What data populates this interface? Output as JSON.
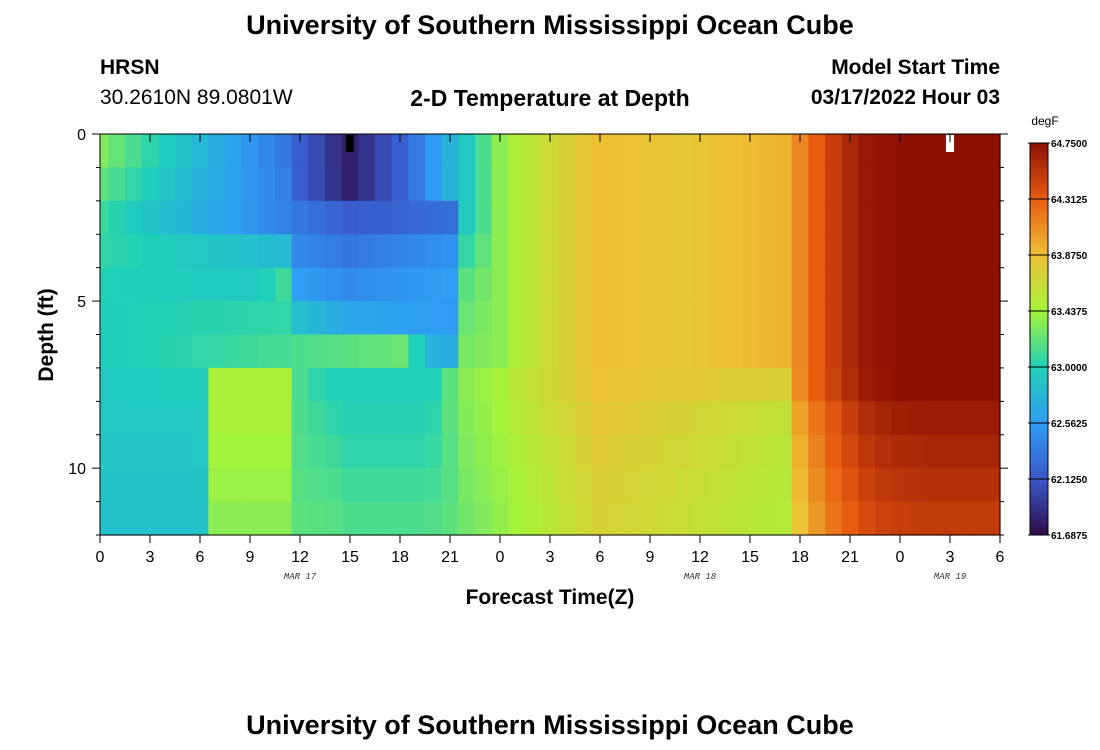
{
  "page": {
    "title_top": "University of Southern Mississippi Ocean Cube",
    "title_bottom": "University of Southern Mississippi Ocean Cube",
    "station": "HRSN",
    "coords": "30.2610N  89.0801W",
    "chart_title": "2-D Temperature at Depth",
    "model_label": "Model Start Time",
    "model_time": "03/17/2022 Hour 03"
  },
  "colors": {
    "background": "#ffffff",
    "axis": "#000000",
    "marker_black": "#000000",
    "marker_white": "#ffffff"
  },
  "chart_data": {
    "type": "heatmap",
    "title": "2-D Temperature at Depth",
    "xlabel": "Forecast Time(Z)",
    "ylabel": "Depth (ft)",
    "x_hours_since_start": [
      0,
      1,
      2,
      3,
      4,
      5,
      6,
      7,
      8,
      9,
      10,
      11,
      12,
      13,
      14,
      15,
      16,
      17,
      18,
      19,
      20,
      21,
      22,
      23,
      24,
      25,
      26,
      27,
      28,
      29,
      30,
      31,
      32,
      33,
      34,
      35,
      36,
      37,
      38,
      39,
      40,
      41,
      42,
      43,
      44,
      45,
      46,
      47,
      48,
      49,
      50,
      51,
      52,
      53,
      54
    ],
    "x_range_hours": [
      0,
      54
    ],
    "x_ticks": [
      {
        "hour": 0,
        "label": "0"
      },
      {
        "hour": 3,
        "label": "3"
      },
      {
        "hour": 6,
        "label": "6"
      },
      {
        "hour": 9,
        "label": "9"
      },
      {
        "hour": 12,
        "label": "12"
      },
      {
        "hour": 15,
        "label": "15"
      },
      {
        "hour": 18,
        "label": "18"
      },
      {
        "hour": 21,
        "label": "21"
      },
      {
        "hour": 24,
        "label": "0"
      },
      {
        "hour": 27,
        "label": "3"
      },
      {
        "hour": 30,
        "label": "6"
      },
      {
        "hour": 33,
        "label": "9"
      },
      {
        "hour": 36,
        "label": "12"
      },
      {
        "hour": 39,
        "label": "15"
      },
      {
        "hour": 42,
        "label": "18"
      },
      {
        "hour": 45,
        "label": "21"
      },
      {
        "hour": 48,
        "label": "0"
      },
      {
        "hour": 51,
        "label": "3"
      },
      {
        "hour": 54,
        "label": "6"
      }
    ],
    "date_labels": [
      {
        "hour": 12,
        "label": "MAR 17"
      },
      {
        "hour": 36,
        "label": "MAR 18"
      },
      {
        "hour": 51,
        "label": "MAR 19"
      }
    ],
    "y_depth_ft": [
      0,
      1,
      2,
      3,
      4,
      5,
      6,
      7,
      8,
      9,
      10,
      11
    ],
    "y_range_ft": [
      0,
      12
    ],
    "y_ticks": [
      {
        "value": 0,
        "label": "0"
      },
      {
        "value": 5,
        "label": "5"
      },
      {
        "value": 10,
        "label": "10"
      }
    ],
    "colorbar": {
      "unit": "degF",
      "min": 61.6875,
      "max": 64.75,
      "ticks": [
        "61.6875",
        "62.1250",
        "62.5625",
        "63.0000",
        "63.4375",
        "63.8750",
        "64.3125",
        "64.7500"
      ],
      "colors": [
        "#2e0d4a",
        "#3a57c8",
        "#2f9df4",
        "#20d0b8",
        "#a6f43a",
        "#efc035",
        "#e85b10",
        "#8c1004"
      ]
    },
    "markers": [
      {
        "hour": 15,
        "color": "black"
      },
      {
        "hour": 51,
        "color": "white"
      }
    ],
    "z_degF": [
      [
        63.32,
        63.23,
        63.14,
        63.05,
        62.96,
        62.88,
        62.79,
        62.7,
        62.61,
        62.52,
        62.43,
        62.34,
        62.17,
        62.04,
        61.9,
        61.8,
        61.92,
        62.05,
        62.18,
        62.35,
        62.55,
        62.75,
        62.95,
        63.15,
        63.35,
        63.5,
        63.58,
        63.66,
        63.74,
        63.82,
        63.87,
        63.86,
        63.85,
        63.84,
        63.83,
        63.82,
        63.84,
        63.86,
        63.87,
        63.89,
        63.91,
        63.93,
        64.12,
        64.31,
        64.48,
        64.61,
        64.7,
        64.73,
        64.74,
        64.74,
        64.74,
        64.74,
        64.74,
        64.74,
        64.74
      ],
      [
        63.21,
        63.13,
        63.06,
        62.98,
        62.91,
        62.83,
        62.76,
        62.68,
        62.61,
        62.53,
        62.46,
        62.38,
        62.17,
        62.05,
        61.92,
        61.8,
        61.92,
        62.05,
        62.18,
        62.35,
        62.55,
        62.75,
        62.95,
        63.15,
        63.35,
        63.5,
        63.58,
        63.66,
        63.74,
        63.82,
        63.87,
        63.86,
        63.85,
        63.84,
        63.83,
        63.82,
        63.84,
        63.86,
        63.87,
        63.89,
        63.91,
        63.93,
        64.12,
        64.31,
        64.48,
        64.61,
        64.7,
        64.73,
        64.74,
        64.74,
        64.74,
        64.74,
        64.74,
        64.74,
        64.74
      ],
      [
        63.09,
        63.03,
        62.96,
        62.9,
        62.84,
        62.78,
        62.71,
        62.65,
        62.59,
        62.52,
        62.46,
        62.4,
        62.33,
        62.27,
        62.21,
        62.15,
        62.17,
        62.19,
        62.21,
        62.23,
        62.25,
        62.27,
        62.95,
        63.15,
        63.35,
        63.5,
        63.58,
        63.66,
        63.74,
        63.82,
        63.87,
        63.86,
        63.85,
        63.84,
        63.83,
        63.82,
        63.84,
        63.86,
        63.87,
        63.89,
        63.91,
        63.93,
        64.12,
        64.31,
        64.48,
        64.61,
        64.7,
        64.73,
        64.74,
        64.74,
        64.74,
        64.74,
        64.74,
        64.74,
        64.74
      ],
      [
        63.06,
        63.04,
        63.02,
        62.99,
        62.97,
        62.95,
        62.92,
        62.9,
        62.88,
        62.85,
        62.83,
        62.81,
        62.44,
        62.4,
        62.36,
        62.32,
        62.35,
        62.38,
        62.41,
        62.44,
        62.47,
        62.5,
        63.07,
        63.21,
        63.35,
        63.5,
        63.58,
        63.66,
        63.74,
        63.82,
        63.87,
        63.86,
        63.85,
        63.84,
        63.83,
        63.82,
        63.84,
        63.86,
        63.87,
        63.89,
        63.91,
        63.93,
        64.12,
        64.31,
        64.48,
        64.61,
        64.7,
        64.73,
        64.74,
        64.74,
        64.74,
        64.74,
        64.74,
        64.74,
        64.74
      ],
      [
        63.01,
        63.0,
        62.99,
        62.99,
        62.98,
        62.97,
        62.96,
        62.96,
        62.95,
        62.94,
        63.0,
        63.1,
        62.57,
        62.53,
        62.49,
        62.45,
        62.47,
        62.49,
        62.51,
        62.53,
        62.55,
        62.57,
        63.19,
        63.27,
        63.35,
        63.5,
        63.58,
        63.66,
        63.74,
        63.82,
        63.87,
        63.86,
        63.85,
        63.84,
        63.83,
        63.82,
        63.84,
        63.86,
        63.87,
        63.89,
        63.91,
        63.93,
        64.12,
        64.31,
        64.48,
        64.61,
        64.7,
        64.73,
        64.74,
        64.74,
        64.74,
        64.74,
        64.74,
        64.74,
        64.74
      ],
      [
        62.99,
        62.99,
        63.0,
        63.01,
        63.01,
        63.02,
        63.03,
        63.03,
        63.04,
        63.05,
        63.05,
        63.06,
        62.85,
        62.78,
        62.71,
        62.64,
        62.62,
        62.61,
        62.59,
        62.58,
        62.56,
        62.55,
        63.24,
        63.3,
        63.35,
        63.5,
        63.58,
        63.66,
        63.74,
        63.82,
        63.87,
        63.86,
        63.85,
        63.84,
        63.83,
        63.82,
        63.84,
        63.86,
        63.87,
        63.89,
        63.91,
        63.93,
        64.12,
        64.31,
        64.48,
        64.61,
        64.7,
        64.73,
        64.74,
        64.74,
        64.74,
        64.74,
        64.74,
        64.74,
        64.74
      ],
      [
        62.97,
        62.98,
        63.0,
        63.01,
        63.03,
        63.04,
        63.06,
        63.07,
        63.09,
        63.1,
        63.12,
        63.13,
        63.15,
        63.16,
        63.18,
        63.19,
        63.21,
        63.22,
        63.24,
        63.0,
        62.75,
        62.7,
        63.29,
        63.32,
        63.35,
        63.5,
        63.58,
        63.66,
        63.74,
        63.82,
        63.87,
        63.86,
        63.85,
        63.84,
        63.83,
        63.82,
        63.84,
        63.86,
        63.87,
        63.89,
        63.91,
        63.93,
        64.12,
        64.31,
        64.48,
        64.61,
        64.7,
        64.73,
        64.74,
        64.74,
        64.74,
        64.74,
        64.74,
        64.74,
        64.74
      ],
      [
        62.95,
        62.95,
        62.96,
        62.96,
        62.97,
        62.97,
        62.98,
        63.47,
        63.47,
        63.47,
        63.47,
        63.47,
        63.14,
        63.05,
        63.0,
        63.0,
        63.0,
        63.0,
        63.0,
        63.0,
        63.0,
        63.2,
        63.35,
        63.4,
        63.45,
        63.55,
        63.61,
        63.67,
        63.73,
        63.79,
        63.85,
        63.84,
        63.83,
        63.82,
        63.81,
        63.8,
        63.79,
        63.78,
        63.77,
        63.76,
        63.75,
        63.74,
        64.1,
        64.3,
        64.45,
        64.58,
        64.68,
        64.72,
        64.74,
        64.74,
        64.74,
        64.74,
        64.74,
        64.74,
        64.74
      ],
      [
        62.93,
        62.93,
        62.93,
        62.93,
        62.94,
        62.94,
        62.94,
        63.47,
        63.47,
        63.47,
        63.47,
        63.47,
        63.15,
        63.1,
        63.05,
        63.02,
        63.02,
        63.02,
        63.02,
        63.02,
        63.05,
        63.2,
        63.33,
        63.38,
        63.43,
        63.52,
        63.58,
        63.64,
        63.7,
        63.76,
        63.82,
        63.8,
        63.78,
        63.76,
        63.74,
        63.72,
        63.7,
        63.68,
        63.66,
        63.64,
        63.62,
        63.6,
        64.0,
        64.2,
        64.35,
        64.48,
        64.58,
        64.63,
        64.66,
        64.67,
        64.68,
        64.68,
        64.68,
        64.68,
        64.68
      ],
      [
        62.91,
        62.91,
        62.91,
        62.91,
        62.91,
        62.91,
        62.92,
        63.43,
        63.43,
        63.43,
        63.43,
        63.43,
        63.16,
        63.13,
        63.1,
        63.05,
        63.05,
        63.05,
        63.05,
        63.05,
        63.08,
        63.18,
        63.31,
        63.36,
        63.41,
        63.48,
        63.54,
        63.6,
        63.66,
        63.72,
        63.78,
        63.76,
        63.74,
        63.72,
        63.7,
        63.68,
        63.66,
        63.64,
        63.62,
        63.6,
        63.58,
        63.56,
        63.95,
        64.15,
        64.3,
        64.42,
        64.52,
        64.57,
        64.6,
        64.61,
        64.62,
        64.62,
        64.62,
        64.62,
        64.62
      ],
      [
        62.89,
        62.89,
        62.89,
        62.89,
        62.89,
        62.89,
        62.9,
        63.4,
        63.4,
        63.4,
        63.4,
        63.4,
        63.18,
        63.16,
        63.14,
        63.1,
        63.1,
        63.1,
        63.1,
        63.1,
        63.12,
        63.18,
        63.29,
        63.34,
        63.39,
        63.45,
        63.51,
        63.57,
        63.63,
        63.69,
        63.75,
        63.73,
        63.71,
        63.69,
        63.67,
        63.65,
        63.63,
        63.61,
        63.59,
        63.57,
        63.55,
        63.53,
        63.9,
        64.1,
        64.25,
        64.36,
        64.46,
        64.51,
        64.54,
        64.55,
        64.56,
        64.56,
        64.56,
        64.56,
        64.56
      ],
      [
        62.87,
        62.87,
        62.87,
        62.87,
        62.87,
        62.87,
        62.88,
        63.35,
        63.35,
        63.35,
        63.35,
        63.35,
        63.2,
        63.19,
        63.18,
        63.15,
        63.15,
        63.15,
        63.15,
        63.15,
        63.16,
        63.2,
        63.27,
        63.32,
        63.37,
        63.43,
        63.49,
        63.55,
        63.61,
        63.67,
        63.73,
        63.71,
        63.69,
        63.67,
        63.65,
        63.63,
        63.61,
        63.59,
        63.57,
        63.55,
        63.53,
        63.51,
        63.85,
        64.05,
        64.2,
        64.3,
        64.4,
        64.45,
        64.48,
        64.49,
        64.5,
        64.5,
        64.5,
        64.5,
        64.5
      ]
    ]
  }
}
